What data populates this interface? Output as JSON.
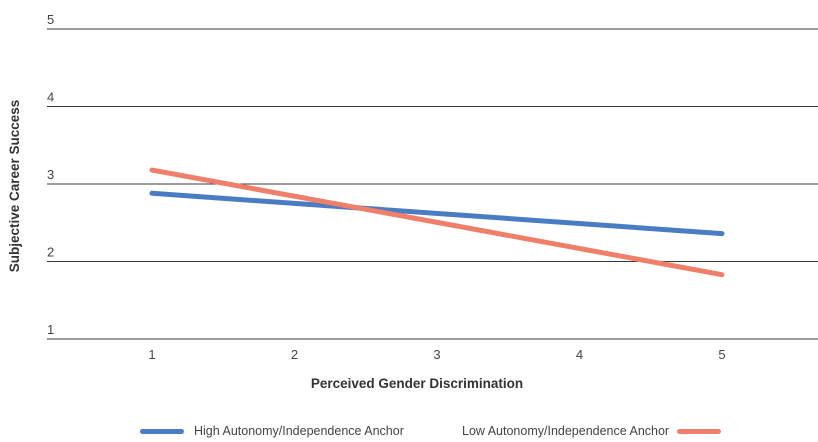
{
  "chart_data": {
    "type": "line",
    "xlabel": "Perceived Gender Discrimination",
    "ylabel": "Subjective Career Success",
    "x": [
      1,
      5
    ],
    "xticks": [
      1,
      2,
      3,
      4,
      5
    ],
    "yticks": [
      1,
      2,
      3,
      4,
      5
    ],
    "xlim": [
      0.3,
      5.8
    ],
    "ylim": [
      0.8,
      5.3
    ],
    "grid": true,
    "legend_position": "bottom",
    "series": [
      {
        "name": "High Autonomy/Independence Anchor",
        "values": [
          2.88,
          2.36
        ],
        "color": "#4a7cc3"
      },
      {
        "name": "Low Autonomy/Independence Anchor",
        "values": [
          3.18,
          1.83
        ],
        "color": "#f07f6a"
      }
    ]
  }
}
